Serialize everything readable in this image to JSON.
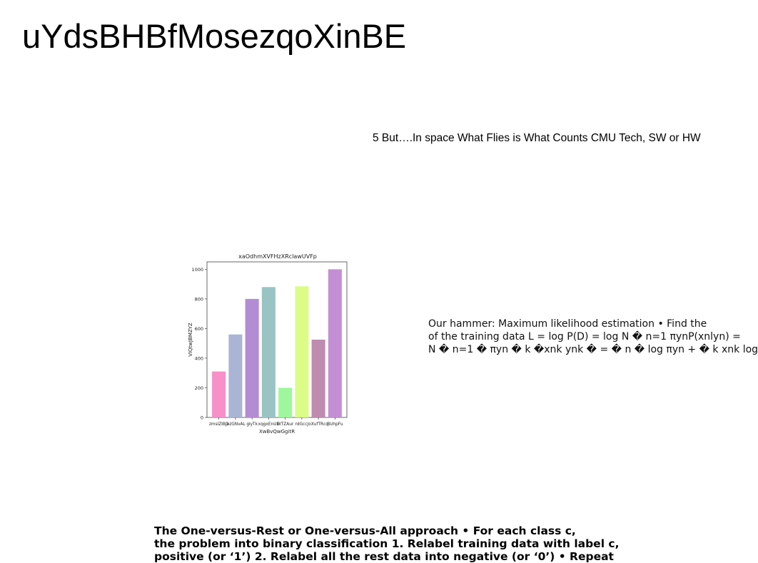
{
  "page": {
    "title": "uYdsBHBfMosezqoXinBE",
    "note": "5 But….In space What Flies is What Counts CMU Tech, SW or HW",
    "paragraph_lines": [
      "Our hammer: Maximum likelihood estimation • Find the",
      "of the training data L = log P(D) = log N � n=1 πynP(xnlyn) =",
      "N � n=1 � πyn � k �xnk ynk � = � n � log πyn + � k xnk log"
    ],
    "bottom_lines": [
      "The One-versus-Rest or One-versus-All approach • For each class c,",
      "the problem into binary classification 1. Relabel training data with label c,",
      "positive (or ‘1’) 2. Relabel all the rest data into negative (or ‘0’) • Repeat"
    ]
  },
  "chart_data": {
    "type": "bar",
    "title": "xaOdhmXVFHzXRclawUVFp",
    "xlabel": "XwBvQwGgitR",
    "ylabel": "VIQtwJBMZYZ",
    "categories": [
      "zmslZIBD",
      "jozGNvAL",
      "glyTk",
      "xqgxEnUE",
      "WTZAur",
      "rdGccJ",
      "oXufTRcq",
      "BUhpFu"
    ],
    "values": [
      310,
      560,
      800,
      880,
      200,
      885,
      525,
      1000
    ],
    "colors": [
      "#f78fc8",
      "#aab4d4",
      "#b48cd4",
      "#9ac4c4",
      "#9ef79c",
      "#dcfc88",
      "#be8cb0",
      "#c48ed4"
    ],
    "ylim": [
      0,
      1050
    ],
    "yticks": [
      0,
      200,
      400,
      600,
      800,
      1000
    ],
    "grid": false,
    "legend": "none"
  }
}
